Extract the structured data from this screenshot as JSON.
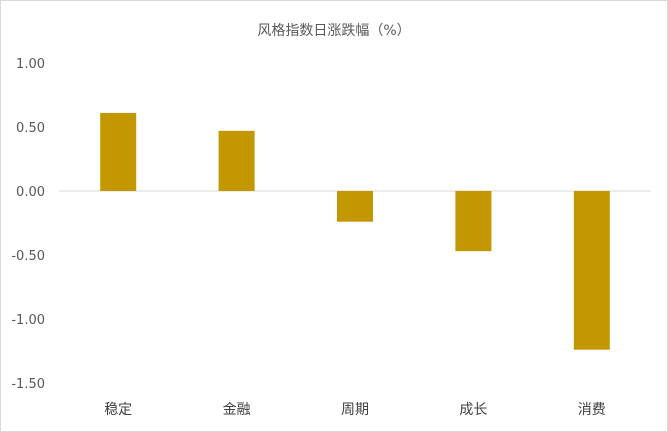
{
  "chart_data": {
    "type": "bar",
    "title": "风格指数日涨跌幅（%）",
    "categories": [
      "稳定",
      "金融",
      "周期",
      "成长",
      "消费"
    ],
    "values": [
      0.61,
      0.47,
      -0.24,
      -0.47,
      -1.24
    ],
    "ylim": [
      -1.5,
      1.0
    ],
    "yticks": [
      "1.00",
      "0.50",
      "0.00",
      "-0.50",
      "-1.00",
      "-1.50"
    ],
    "ytick_values": [
      1.0,
      0.5,
      0.0,
      -0.5,
      -1.0,
      -1.5
    ],
    "xlabel": "",
    "ylabel": "",
    "grid": false,
    "legend": "none",
    "bar_color": "#C39700",
    "axis_color": "#d9d9d9"
  }
}
